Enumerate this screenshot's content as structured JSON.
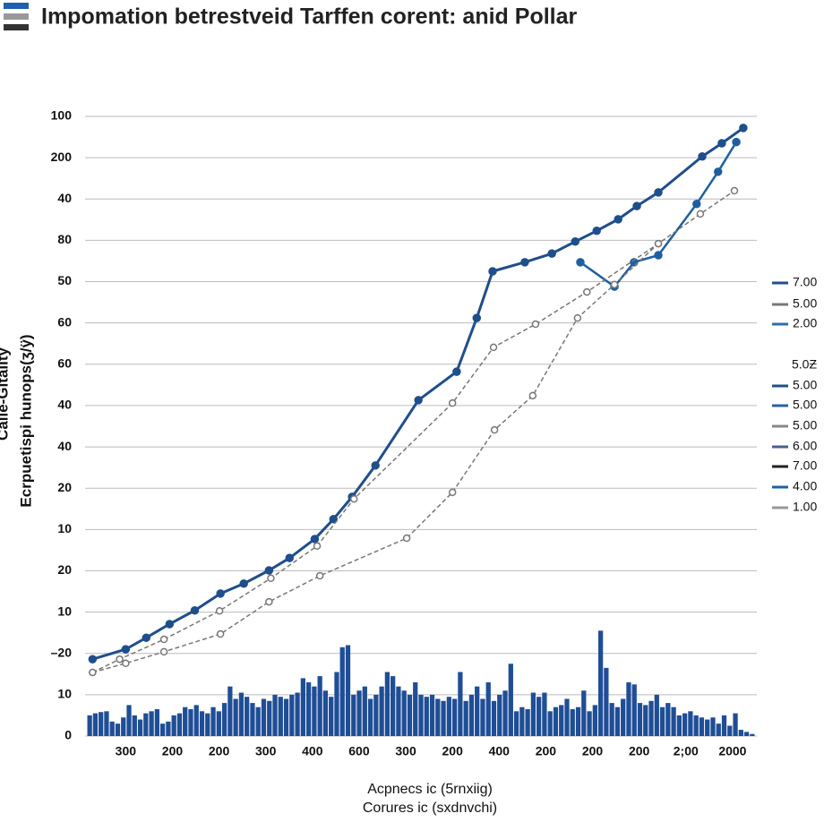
{
  "chart_data": {
    "type": "line",
    "title": "Impomation betrestveid Tarffen corent: anid Pollar",
    "ylabel": "Ecrpuetispi hunops(ʒ/ÿ)",
    "ylabel_top": "Calle-Gitality",
    "xlabel": [
      "Acpnecs ic (5rnxiig)",
      "Corures ic (sxdnvchi)"
    ],
    "categories": [
      "300",
      "200",
      "200",
      "300",
      "400",
      "600",
      "300",
      "200",
      "400",
      "200",
      "200",
      "200",
      "2;00",
      "2000"
    ],
    "xlim": [
      -0.87,
      13.52
    ],
    "ylim": [
      0,
      15
    ],
    "yticks": [
      {
        "value": 0,
        "label": "0"
      },
      {
        "value": 1,
        "label": "10"
      },
      {
        "value": 2,
        "label": "–20"
      },
      {
        "value": 3,
        "label": "10"
      },
      {
        "value": 4,
        "label": "20"
      },
      {
        "value": 5,
        "label": "10"
      },
      {
        "value": 6,
        "label": "20"
      },
      {
        "value": 7,
        "label": "40"
      },
      {
        "value": 8,
        "label": "40"
      },
      {
        "value": 9,
        "label": "60"
      },
      {
        "value": 10,
        "label": "60"
      },
      {
        "value": 11,
        "label": "50"
      },
      {
        "value": 12,
        "label": "80"
      },
      {
        "value": 13,
        "label": "40"
      },
      {
        "value": 14,
        "label": "200"
      },
      {
        "value": 15,
        "label": "100"
      }
    ],
    "grid": true,
    "series": [
      {
        "color": "#1f4e8c",
        "width": 3,
        "dash": false,
        "markers": true,
        "x": [
          -0.71,
          0,
          0.44,
          0.94,
          1.48,
          2.03,
          2.53,
          3.07,
          3.51,
          4.05,
          4.45,
          4.85,
          5.35,
          6.27,
          7.09,
          7.52,
          7.86,
          8.55,
          9.13,
          9.63,
          10.09,
          10.55,
          10.95,
          11.41,
          12.35,
          12.77,
          13.23
        ],
        "values": [
          1.86,
          2.1,
          2.38,
          2.71,
          3.04,
          3.45,
          3.69,
          4.01,
          4.31,
          4.77,
          5.25,
          5.79,
          6.55,
          8.13,
          8.82,
          10.12,
          11.25,
          11.47,
          11.68,
          11.97,
          12.23,
          12.51,
          12.83,
          13.16,
          14.03,
          14.35,
          14.72
        ]
      },
      {
        "color": "#1f5fa0",
        "width": 2.5,
        "dash": false,
        "markers": true,
        "x": [
          9.74,
          10.47,
          10.89,
          11.41,
          12.23,
          12.69,
          13.08
        ],
        "values": [
          11.47,
          10.88,
          11.47,
          11.64,
          12.88,
          13.66,
          14.38
        ]
      },
      {
        "color": "#777777",
        "width": 1.5,
        "dash": true,
        "markers": true,
        "x": [
          -0.71,
          -0.13,
          0.82,
          2.01,
          3.11,
          4.1,
          4.89,
          7.0,
          7.88,
          8.78,
          9.88,
          11.41,
          12.31,
          13.04
        ],
        "values": [
          1.54,
          1.86,
          2.34,
          3.03,
          3.82,
          4.6,
          5.74,
          8.06,
          9.41,
          9.97,
          10.75,
          11.92,
          12.64,
          13.2
        ]
      },
      {
        "color": "#777777",
        "width": 1.5,
        "dash": true,
        "markers": true,
        "x": [
          -0.71,
          0,
          0.82,
          2.03,
          3.07,
          4.16,
          6.02,
          7.0,
          7.9,
          8.72,
          9.68,
          10.47,
          11.41
        ],
        "values": [
          1.54,
          1.76,
          2.04,
          2.47,
          3.25,
          3.88,
          4.79,
          5.9,
          7.41,
          8.24,
          10.12,
          10.93,
          11.92
        ]
      }
    ],
    "bars": {
      "color": "#1f4e96",
      "values": [
        0.5,
        0.55,
        0.58,
        0.6,
        0.35,
        0.3,
        0.45,
        0.75,
        0.5,
        0.4,
        0.55,
        0.6,
        0.65,
        0.3,
        0.35,
        0.5,
        0.55,
        0.7,
        0.65,
        0.75,
        0.6,
        0.55,
        0.7,
        0.6,
        0.8,
        1.2,
        0.9,
        1.05,
        0.95,
        0.8,
        0.7,
        0.9,
        0.85,
        1.0,
        0.95,
        0.9,
        1.0,
        1.05,
        1.4,
        1.3,
        1.2,
        1.45,
        1.1,
        0.95,
        1.55,
        2.15,
        2.2,
        1.0,
        1.1,
        1.2,
        0.9,
        1.0,
        1.2,
        1.55,
        1.45,
        1.2,
        1.1,
        1.0,
        1.3,
        1.0,
        0.95,
        1.0,
        0.9,
        0.85,
        0.95,
        0.9,
        1.55,
        0.85,
        1.0,
        1.2,
        0.9,
        1.3,
        0.85,
        1.0,
        1.1,
        1.75,
        0.6,
        0.7,
        0.65,
        1.05,
        0.95,
        1.05,
        0.6,
        0.7,
        0.75,
        0.9,
        0.65,
        0.7,
        1.1,
        0.6,
        0.75,
        2.55,
        1.65,
        0.8,
        0.7,
        0.9,
        1.3,
        1.25,
        0.8,
        0.75,
        0.85,
        1.0,
        0.7,
        0.8,
        0.7,
        0.5,
        0.55,
        0.6,
        0.5,
        0.45,
        0.4,
        0.45,
        0.3,
        0.5,
        0.25,
        0.55,
        0.15,
        0.1,
        0.05
      ]
    },
    "legend": [
      {
        "label": "7.00",
        "color": "#1f4e8c"
      },
      {
        "label": "5.00",
        "color": "#777777"
      },
      {
        "label": "2.00",
        "color": "#2a6db5"
      },
      {
        "label": "5.0Ƶ"
      },
      {
        "label": "5.00",
        "color": "#1f4e8c"
      },
      {
        "label": "5.00",
        "color": "#2a5fa0"
      },
      {
        "label": "5.00",
        "color": "#888888"
      },
      {
        "label": "6.00",
        "color": "#4a5f90"
      },
      {
        "label": "7.00",
        "color": "#222222"
      },
      {
        "label": "4.00",
        "color": "#1f5fa8"
      },
      {
        "label": "1.00",
        "color": "#999999"
      }
    ]
  }
}
